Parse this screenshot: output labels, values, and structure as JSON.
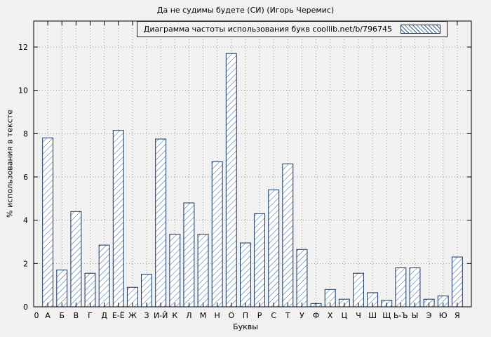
{
  "chart_data": {
    "type": "bar",
    "title": "Да не судимы будете (СИ) (Игорь Черемис)",
    "legend_label": "Диаграмма частоты использования букв coollib.net/b/796745",
    "xlabel": "Буквы",
    "ylabel": "% использования в тексте",
    "origin_label": "0",
    "categories": [
      "А",
      "Б",
      "В",
      "Г",
      "Д",
      "Е-Ё",
      "Ж",
      "З",
      "И-Й",
      "К",
      "Л",
      "М",
      "Н",
      "О",
      "П",
      "Р",
      "С",
      "Т",
      "У",
      "Ф",
      "Х",
      "Ц",
      "Ч",
      "Ш",
      "Щ",
      "Ь-Ъ",
      "Ы",
      "Э",
      "Ю",
      "Я"
    ],
    "values": [
      7.8,
      1.7,
      4.4,
      1.55,
      2.85,
      8.15,
      0.9,
      1.5,
      7.75,
      3.35,
      4.8,
      3.35,
      6.7,
      11.7,
      2.95,
      4.3,
      5.4,
      6.6,
      2.65,
      0.15,
      0.8,
      0.35,
      1.55,
      0.65,
      0.3,
      1.8,
      1.8,
      0.35,
      0.5,
      2.3
    ],
    "yticks": [
      0,
      2,
      4,
      6,
      8,
      10,
      12
    ],
    "ylim": [
      0,
      13.2
    ],
    "grid": true,
    "legend_position": "top-right",
    "colors": {
      "bar_fill": "#ffffff",
      "bar_hatch": "#2e5fa3",
      "bar_border": "#16365f",
      "axis": "#000000",
      "grid": "#9a9a9a",
      "background": "#f1f1f1"
    }
  }
}
